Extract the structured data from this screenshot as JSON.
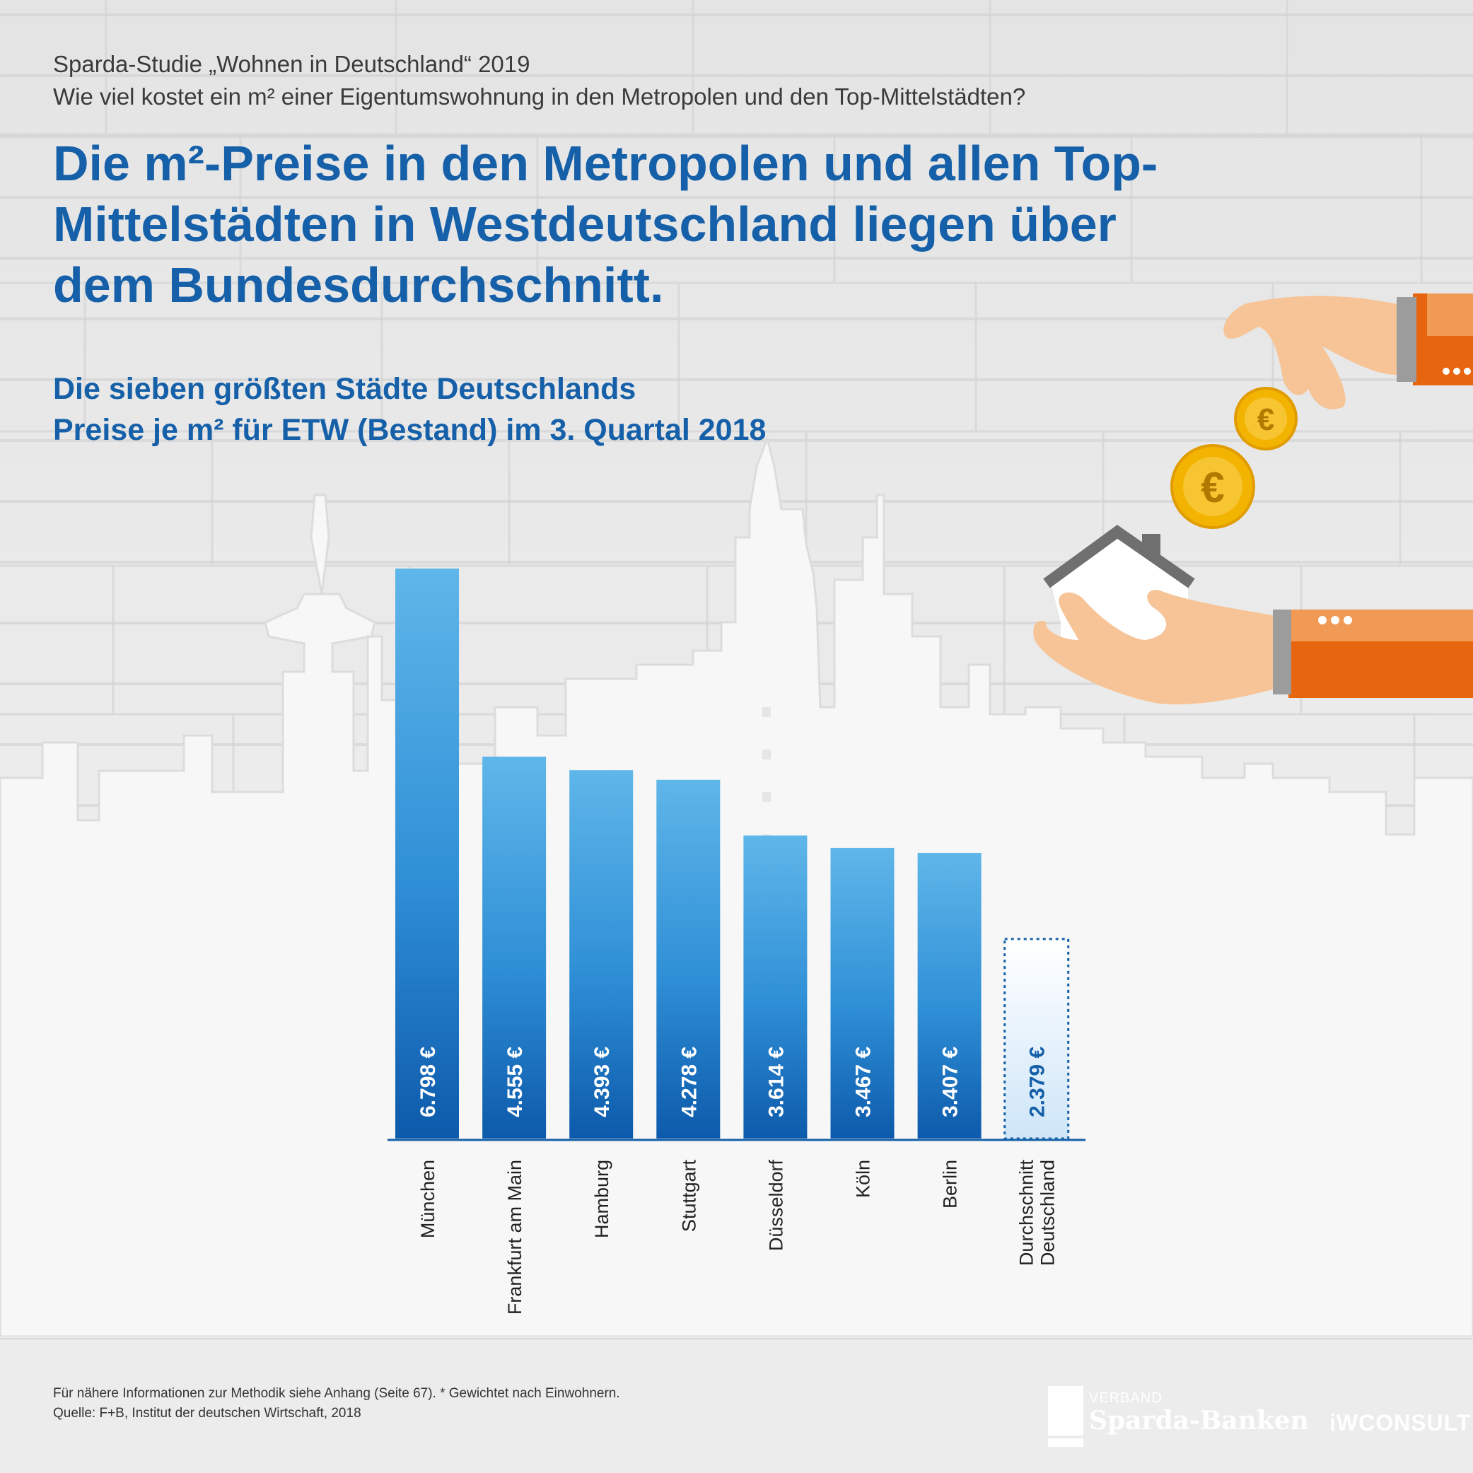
{
  "header": {
    "study": "Sparda-Studie „Wohnen in Deutschland“ 2019",
    "question": "Wie viel kostet ein m² einer Eigentumswohnung in den Metropolen und den Top-Mittelstädten?",
    "headline": [
      "Die m²-Preise in den Metropolen und allen Top-",
      "Mittelstädten in Westdeutschland liegen über",
      "dem Bundesdurchschnitt."
    ]
  },
  "chart_data": {
    "type": "bar",
    "title": "Die sieben größten Städte Deutschlands",
    "subtitle": "Preise je m² für ETW (Bestand) im 3. Quartal 2018",
    "categories": [
      "München",
      "Frankfurt am Main",
      "Hamburg",
      "Stuttgart",
      "Düsseldorf",
      "Köln",
      "Berlin",
      "Durchschnitt Deutschland"
    ],
    "values": [
      6798,
      4555,
      4393,
      4278,
      3614,
      3467,
      3407,
      2379
    ],
    "value_labels": [
      "6.798 €",
      "4.555 €",
      "4.393 €",
      "4.278 €",
      "3.614 €",
      "3.467 €",
      "3.407 €",
      "2.379 €"
    ],
    "highlight_last_as_average": true,
    "ylim": [
      0,
      6798
    ],
    "colors": {
      "bar_top": "#5fb6e9",
      "bar_bottom": "#0d5aab",
      "average_border": "#1560a8"
    }
  },
  "footer": {
    "note": "Für nähere Informationen zur Methodik siehe Anhang (Seite 67). * Gewichtet nach Einwohnern.",
    "source": "Quelle: F+B, Institut der deutschen Wirtschaft, 2018",
    "logo_verband": "VERBAND",
    "logo_sparda": "Sparda-Banken",
    "logo_iw": "iWCONSULT"
  }
}
